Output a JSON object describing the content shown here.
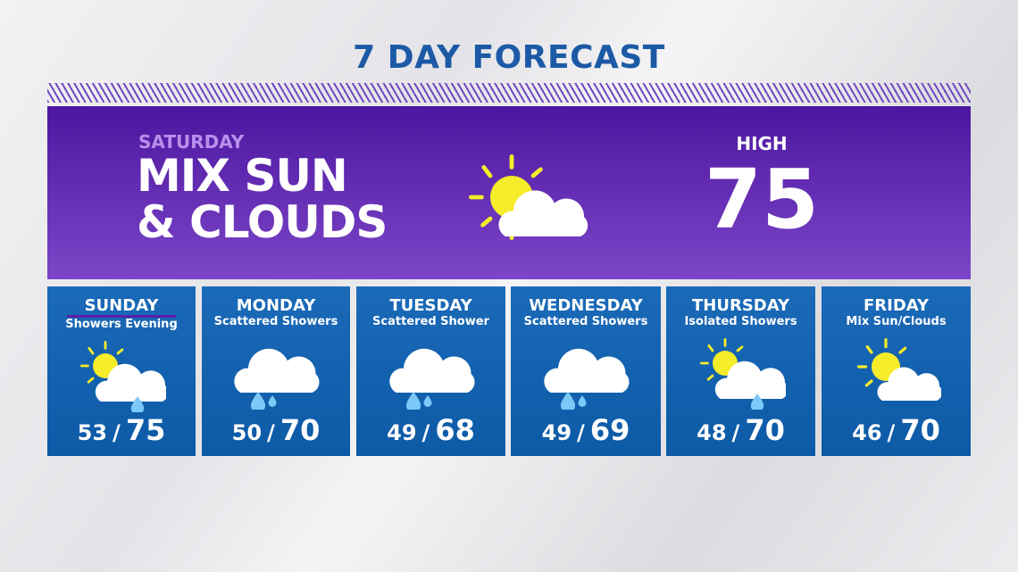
{
  "title": "7 DAY FORECAST",
  "today": {
    "day": "SATURDAY",
    "condition_line1": "MIX SUN",
    "condition_line2": "& CLOUDS",
    "high_label": "HIGH",
    "high": "75",
    "icon": "sun-cloud-icon"
  },
  "days": [
    {
      "day": "SUNDAY",
      "condition": "Showers Evening",
      "low": "53",
      "high": "75",
      "icon": "sun-cloud-rain-icon",
      "underlined": true
    },
    {
      "day": "MONDAY",
      "condition": "Scattered Showers",
      "low": "50",
      "high": "70",
      "icon": "cloud-rain-icon"
    },
    {
      "day": "TUESDAY",
      "condition": "Scattered Shower",
      "low": "49",
      "high": "68",
      "icon": "cloud-rain-icon"
    },
    {
      "day": "WEDNESDAY",
      "condition": "Scattered Showers",
      "low": "49",
      "high": "69",
      "icon": "cloud-rain-icon"
    },
    {
      "day": "THURSDAY",
      "condition": "Isolated Showers",
      "low": "48",
      "high": "70",
      "icon": "sun-cloud-rain-icon"
    },
    {
      "day": "FRIDAY",
      "condition": "Mix Sun/Clouds",
      "low": "46",
      "high": "70",
      "icon": "sun-cloud-icon"
    }
  ],
  "separator": "/",
  "colors": {
    "title": "#1c5aa6",
    "hero_top": "#4d16a0",
    "hero_bottom": "#7c46c8",
    "card": "#1565b0",
    "sun": "#f5ec2a",
    "rain": "#7cc8f8"
  }
}
